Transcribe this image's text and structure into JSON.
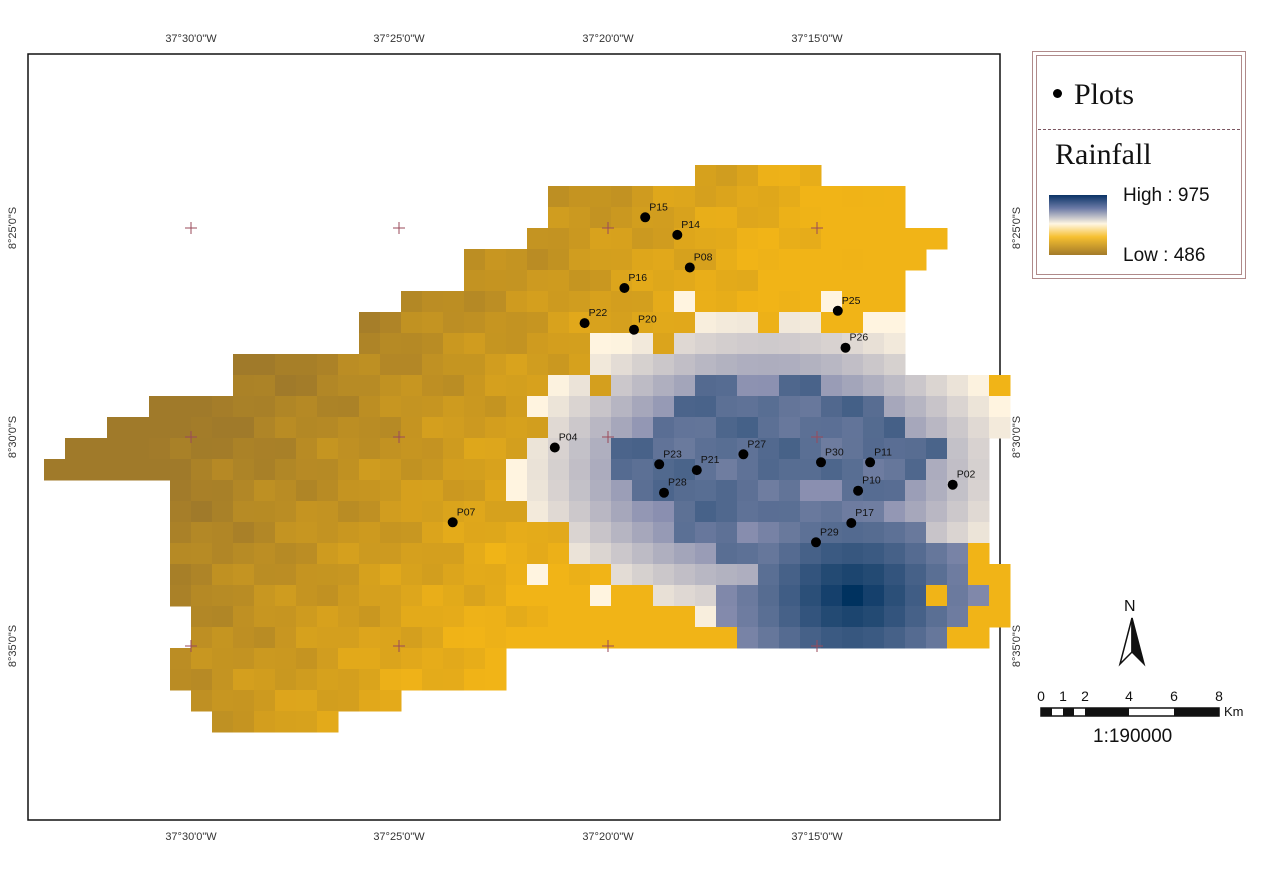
{
  "map": {
    "top_lon_labels": [
      "37°30'0\"W",
      "37°25'0\"W",
      "37°20'0\"W",
      "37°15'0\"W"
    ],
    "bottom_lon_labels": [
      "37°30'0\"W",
      "37°25'0\"W",
      "37°20'0\"W",
      "37°15'0\"W"
    ],
    "left_lat_labels": [
      "8°25'0\"S",
      "8°30'0\"S",
      "8°35'0\"S"
    ],
    "right_lat_labels": [
      "8°25'0\"S",
      "8°30'0\"S",
      "8°35'0\"S"
    ],
    "colors": {
      "low": "#a07a2a",
      "mid_low": "#f1b417",
      "mid": "#fff4e0",
      "mid_high": "#8a8fb0",
      "high": "#00325f"
    },
    "plots": [
      {
        "id": "P15",
        "lon": -37.3186,
        "lat": -8.4124
      },
      {
        "id": "P14",
        "lon": -37.3058,
        "lat": -8.4194
      },
      {
        "id": "P08",
        "lon": -37.3008,
        "lat": -8.4324
      },
      {
        "id": "P16",
        "lon": -37.3269,
        "lat": -8.4406
      },
      {
        "id": "P22",
        "lon": -37.3428,
        "lat": -8.4546
      },
      {
        "id": "P20",
        "lon": -37.3231,
        "lat": -8.4572
      },
      {
        "id": "P25",
        "lon": -37.2417,
        "lat": -8.4497
      },
      {
        "id": "P26",
        "lon": -37.2386,
        "lat": -8.4644
      },
      {
        "id": "P04",
        "lon": -37.3547,
        "lat": -8.5042
      },
      {
        "id": "P27",
        "lon": -37.2794,
        "lat": -8.5069
      },
      {
        "id": "P30",
        "lon": -37.2484,
        "lat": -8.5101
      },
      {
        "id": "P11",
        "lon": -37.2288,
        "lat": -8.5101
      },
      {
        "id": "P23",
        "lon": -37.313,
        "lat": -8.5109
      },
      {
        "id": "P21",
        "lon": -37.298,
        "lat": -8.5132
      },
      {
        "id": "P02",
        "lon": -37.1958,
        "lat": -8.519
      },
      {
        "id": "P10",
        "lon": -37.2336,
        "lat": -8.5214
      },
      {
        "id": "P28",
        "lon": -37.3111,
        "lat": -8.5222
      },
      {
        "id": "P07",
        "lon": -37.3955,
        "lat": -8.534
      },
      {
        "id": "P17",
        "lon": -37.2363,
        "lat": -8.5343
      },
      {
        "id": "P29",
        "lon": -37.2504,
        "lat": -8.542
      }
    ]
  },
  "legend": {
    "plots_label": "Plots",
    "rainfall_title": "Rainfall",
    "high_label": "High : 975",
    "low_label": "Low : 486"
  },
  "north_arrow": {
    "label": "N"
  },
  "scale_bar": {
    "ticks": [
      "0",
      "1",
      "2",
      "4",
      "6",
      "8"
    ],
    "unit": "Km",
    "ratio": "1:190000"
  }
}
